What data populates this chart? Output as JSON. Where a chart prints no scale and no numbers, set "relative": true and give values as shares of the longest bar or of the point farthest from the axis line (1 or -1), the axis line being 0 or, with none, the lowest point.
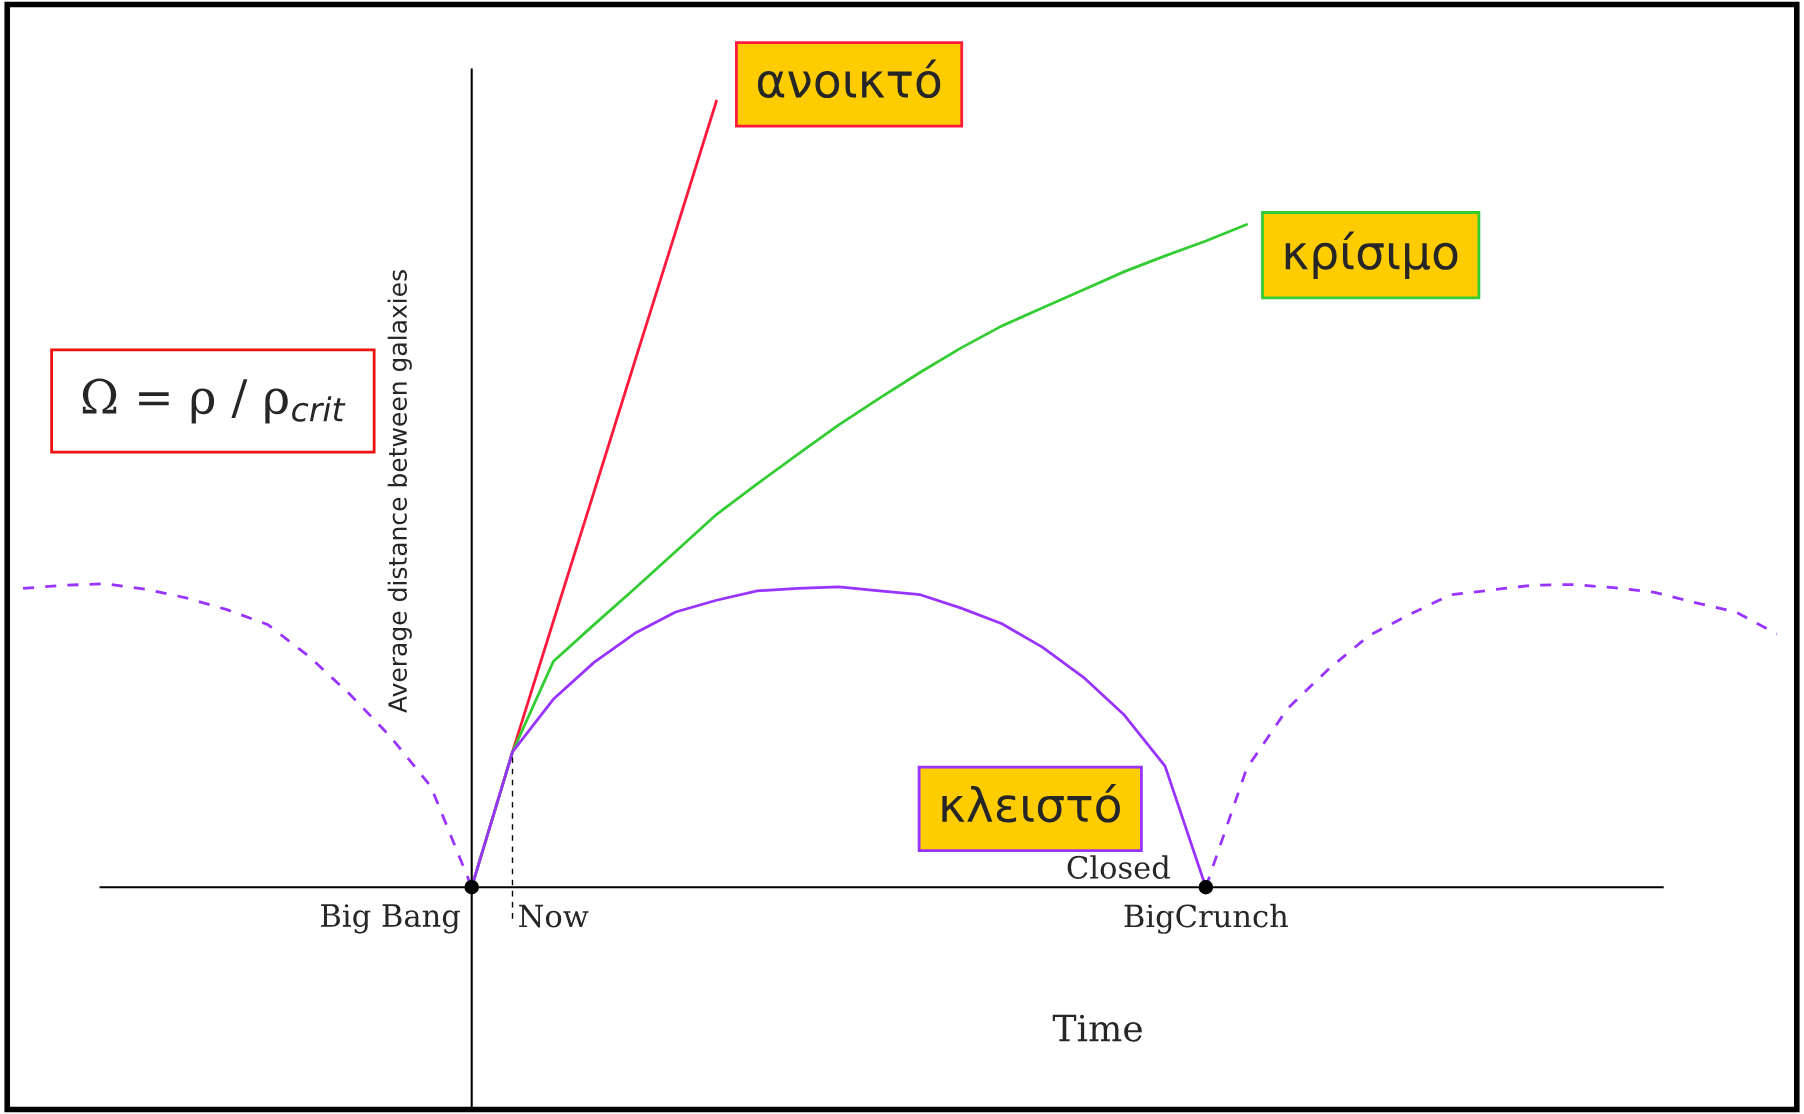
{
  "chart_data": {
    "type": "line",
    "relative": true,
    "xlabel": "Time",
    "ylabel": "Average distance between galaxies",
    "categories": [
      null,
      null,
      null,
      null,
      null,
      null,
      null,
      null,
      null,
      "Big Bang",
      null,
      null,
      null,
      "Now",
      null,
      null,
      null,
      null,
      null,
      null,
      null,
      null,
      null,
      null,
      null,
      null,
      null,
      null,
      null,
      "BigCrunch",
      null,
      null,
      null,
      null,
      null,
      null,
      null,
      null,
      null,
      null,
      null,
      null,
      null,
      null
    ],
    "series": [
      {
        "name": "ανοικτό",
        "color": "#ff1a3c",
        "values": [
          null,
          null,
          null,
          null,
          null,
          null,
          null,
          null,
          null,
          null,
          null,
          0,
          0.172,
          0.338,
          0.503,
          0.669,
          0.834,
          1.0,
          null,
          null,
          null,
          null,
          null,
          null,
          null,
          null,
          null,
          null,
          null,
          null,
          null,
          null,
          null,
          null,
          null,
          null,
          null,
          null,
          null,
          null,
          null,
          null,
          null,
          null
        ]
      },
      {
        "name": "κρίσιμο",
        "color": "#33cc33",
        "values": [
          null,
          null,
          null,
          null,
          null,
          null,
          null,
          null,
          null,
          null,
          null,
          0,
          0.172,
          0.287,
          0.334,
          0.38,
          0.427,
          0.474,
          0.513,
          0.551,
          0.588,
          0.622,
          0.655,
          0.686,
          0.714,
          0.737,
          0.76,
          0.783,
          0.803,
          0.822,
          0.843,
          null,
          null,
          null,
          null,
          null,
          null,
          null,
          null,
          null,
          null,
          null,
          null,
          null
        ]
      },
      {
        "name": "κλειστό",
        "color": "#9933ff",
        "values": [
          null,
          null,
          null,
          null,
          null,
          null,
          null,
          null,
          null,
          null,
          null,
          0,
          0.172,
          0.239,
          0.286,
          0.323,
          0.35,
          0.365,
          0.377,
          0.38,
          0.382,
          0.377,
          0.372,
          0.355,
          0.335,
          0.305,
          0.267,
          0.219,
          0.154,
          0,
          null,
          null,
          null,
          null,
          null,
          null,
          null,
          null,
          null,
          null,
          null,
          null,
          null,
          null
        ]
      },
      {
        "color": "#9933ff",
        "line_style": "dashed",
        "values": [
          0.38,
          0.384,
          0.386,
          0.379,
          0.368,
          0.353,
          0.334,
          0.294,
          0.246,
          0.192,
          0.128,
          0,
          null,
          null,
          null,
          null,
          null,
          null,
          null,
          null,
          null,
          null,
          null,
          null,
          null,
          null,
          null,
          null,
          null,
          null,
          null,
          null,
          null,
          null,
          null,
          null,
          null,
          null,
          null,
          null,
          null,
          null,
          null,
          null
        ]
      },
      {
        "color": "#9933ff",
        "line_style": "dashed",
        "values": [
          null,
          null,
          null,
          null,
          null,
          null,
          null,
          null,
          null,
          null,
          null,
          null,
          null,
          null,
          null,
          null,
          null,
          null,
          null,
          null,
          null,
          null,
          null,
          null,
          null,
          null,
          null,
          null,
          null,
          0,
          0.151,
          0.227,
          0.277,
          0.32,
          0.347,
          0.372,
          0.378,
          0.384,
          0.385,
          0.381,
          0.375,
          0.362,
          0.35,
          0.322
        ]
      },
      {
        "type": "scatter",
        "color": "#000000",
        "marker": "circle",
        "values": [
          null,
          null,
          null,
          null,
          null,
          null,
          null,
          null,
          null,
          null,
          null,
          0,
          null,
          null,
          null,
          null,
          null,
          null,
          null,
          null,
          null,
          null,
          null,
          null,
          null,
          null,
          null,
          null,
          null,
          0,
          null,
          null,
          null,
          null,
          null,
          null,
          null,
          null,
          null,
          null,
          null,
          null,
          null,
          null
        ]
      }
    ],
    "annotations": [
      "Closed",
      "Ω = ρ / ρ$_{crit}$"
    ]
  }
}
